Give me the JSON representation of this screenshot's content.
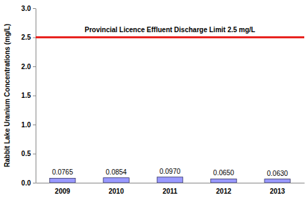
{
  "chart_data": {
    "type": "bar",
    "ylabel": "Rabbit Lake Uranium Concentrations (mg/L)",
    "categories": [
      "2009",
      "2010",
      "2011",
      "2012",
      "2013"
    ],
    "values": [
      0.0765,
      0.0854,
      0.097,
      0.065,
      0.063
    ],
    "value_labels": [
      "0.0765",
      "0.0854",
      "0.0970",
      "0.0650",
      "0.0630"
    ],
    "data_labels": true,
    "color": "#9999ff",
    "ylim": [
      0,
      3
    ],
    "yticks": [
      {
        "value": 0,
        "label": "0.0"
      },
      0.5,
      {
        "value": 1,
        "label": "1.0"
      },
      1.5,
      {
        "value": 2,
        "label": "2.0"
      },
      2.5,
      {
        "value": 3,
        "label": "3.0"
      }
    ],
    "grid": false,
    "annotations": [
      {
        "text": "Provincial Licence Effluent Discharge Limit 2.5 mg/L",
        "value": 2.5,
        "color": "#e8231f"
      }
    ]
  }
}
